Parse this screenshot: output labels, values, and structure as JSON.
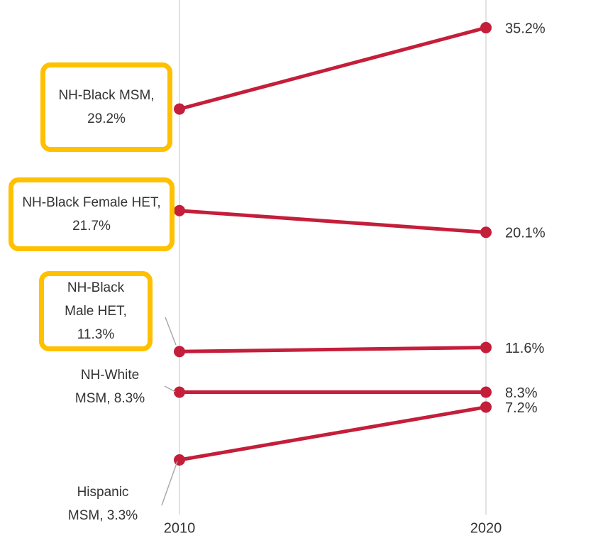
{
  "chart_data": {
    "type": "slope",
    "categories": [
      "2010",
      "2020"
    ],
    "ylim": [
      0,
      37
    ],
    "line_color": "#c41e3a",
    "grid": true,
    "highlight_color": "#ffc000",
    "series": [
      {
        "values": [
          29.2,
          35.2
        ],
        "value_labels": [
          "NH-Black MSM, 29.2%",
          "35.2%"
        ],
        "highlighted": true
      },
      {
        "values": [
          21.7,
          20.1
        ],
        "value_labels": [
          "NH-Black Female HET, 21.7%",
          "20.1%"
        ],
        "highlighted": true
      },
      {
        "values": [
          11.3,
          11.6
        ],
        "value_labels": [
          "NH-Black Male HET, 11.3%",
          "11.6%"
        ],
        "highlighted": true
      },
      {
        "values": [
          8.3,
          8.3
        ],
        "value_labels": [
          "NH-White MSM, 8.3%",
          "8.3%"
        ],
        "highlighted": false
      },
      {
        "values": [
          3.3,
          7.2
        ],
        "value_labels": [
          "Hispanic MSM, 3.3%",
          "7.2%"
        ],
        "highlighted": false
      }
    ]
  }
}
